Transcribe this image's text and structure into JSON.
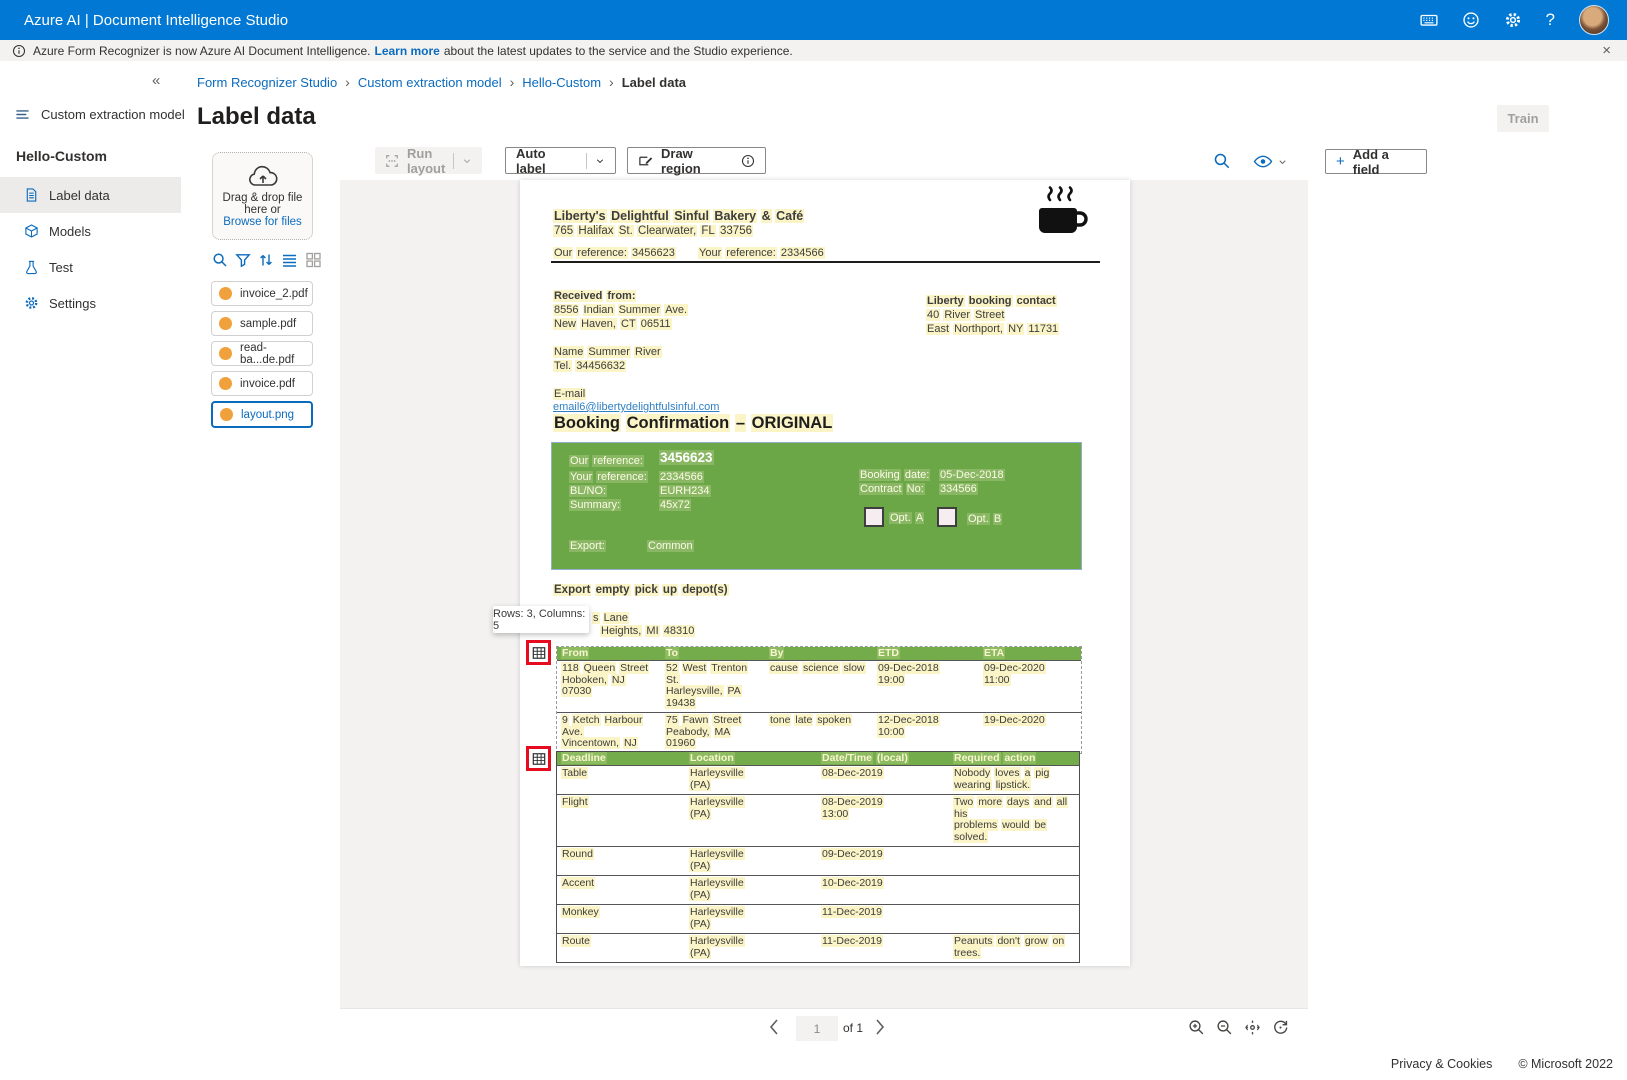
{
  "topbar": {
    "title": "Azure AI | Document Intelligence Studio"
  },
  "notification": {
    "prefix": "Azure Form Recognizer is now Azure AI Document Intelligence.",
    "link": "Learn more",
    "suffix": "about the latest updates to the service and the Studio experience."
  },
  "icons": {
    "collapse": "«",
    "close": "×",
    "help": "?",
    "plus": "+"
  },
  "sidebar": {
    "section": "Custom extraction model",
    "project": "Hello-Custom",
    "items": [
      {
        "label": "Label data",
        "selected": true
      },
      {
        "label": "Models",
        "selected": false
      },
      {
        "label": "Test",
        "selected": false
      },
      {
        "label": "Settings",
        "selected": false
      }
    ]
  },
  "breadcrumb": {
    "items": [
      "Form Recognizer Studio",
      "Custom extraction model",
      "Hello-Custom",
      "Label data"
    ],
    "separator": "›"
  },
  "page": {
    "title": "Label data",
    "train": "Train"
  },
  "files_panel": {
    "dropzone": {
      "line1": "Drag & drop file",
      "line2": "here or",
      "browse": "Browse for files"
    },
    "files": [
      {
        "name": "invoice_2.pdf",
        "selected": false
      },
      {
        "name": "sample.pdf",
        "selected": false
      },
      {
        "name": "read-ba...de.pdf",
        "selected": false
      },
      {
        "name": "invoice.pdf",
        "selected": false
      },
      {
        "name": "layout.png",
        "selected": true
      }
    ]
  },
  "toolbar": {
    "run_layout": "Run layout",
    "auto_label": "Auto label",
    "draw_region": "Draw region"
  },
  "right_panel": {
    "add_field": "Add a field"
  },
  "tooltip": {
    "text": "Rows: 3, Columns: 5"
  },
  "doc": {
    "company": "Liberty's Delightful Sinful Bakery & Café",
    "company_address": "765 Halifax St. Clearwater, FL 33756",
    "our_ref_line": "Our reference: 3456623",
    "your_ref_line": "Your reference: 2334566",
    "received_label": "Received from:",
    "received_addr1": "8556 Indian Summer Ave.",
    "received_addr2": "New Haven, CT 06511",
    "contact_label": "Liberty booking contact",
    "contact_addr1": "40 River Street",
    "contact_addr2": "East Northport, NY 11731",
    "name_line": "Name Summer River",
    "tel_line": "Tel. 34456632",
    "email_label": "E-mail",
    "email": "email6@libertydelightfulsinful.com",
    "booking_title": "Booking Confirmation – ORIGINAL",
    "green_box": {
      "our_ref_label": "Our reference:",
      "our_ref": "3456623",
      "your_ref_label": "Your reference:",
      "your_ref": "2334566",
      "blno_label": "BL/NO:",
      "blno": "EURH234",
      "summary_label": "Summary:",
      "summary": "45x72",
      "booking_date_label": "Booking date:",
      "booking_date": "05-Dec-2018",
      "contract_label": "Contract No:",
      "contract": "334566",
      "opt_a": "Opt. A",
      "opt_b": "Opt. B",
      "export_label": "Export:",
      "export_value": "Common"
    },
    "depot_heading": "Export empty pick up depot(s)",
    "addr_fragment1": "s Lane",
    "addr_fragment2": "Heights, MI 48310",
    "table1": {
      "headers": [
        "From",
        "To",
        "By",
        "ETD",
        "ETA"
      ],
      "rows": [
        [
          "118 Queen Street\nHoboken, NJ 07030",
          "52 West Trenton St.\nHarleysville, PA\n19438",
          "cause science slow",
          "09-Dec-2018\n19:00",
          "09-Dec-2020\n11:00"
        ],
        [
          "9 Ketch Harbour\nAve.\nVincentown, NJ",
          "75 Fawn Street\nPeabody, MA 01960",
          "tone late spoken",
          "12-Dec-2018\n10:00",
          "19-Dec-2020"
        ]
      ]
    },
    "table2": {
      "headers": [
        "Deadline",
        "Location",
        "Date/Time (local)",
        "Required action"
      ],
      "rows": [
        [
          "Table",
          "Harleysville\n(PA)",
          "08-Dec-2019",
          "Nobody loves a pig\nwearing lipstick."
        ],
        [
          "Flight",
          "Harleysville\n(PA)",
          "08-Dec-2019\n13:00",
          "Two more days and all his\nproblems would be solved."
        ],
        [
          "Round",
          "Harleysville\n(PA)",
          "09-Dec-2019",
          ""
        ],
        [
          "Accent",
          "Harleysville\n(PA)",
          "10-Dec-2019",
          ""
        ],
        [
          "Monkey",
          "Harleysville\n(PA)",
          "11-Dec-2019",
          ""
        ],
        [
          "Route",
          "Harleysville\n(PA)",
          "11-Dec-2019",
          "Peanuts don't grow on\ntrees."
        ]
      ]
    }
  },
  "pagination": {
    "page": "1",
    "of_label": "of 1"
  },
  "footer": {
    "privacy": "Privacy & Cookies",
    "copyright": "© Microsoft 2022"
  }
}
